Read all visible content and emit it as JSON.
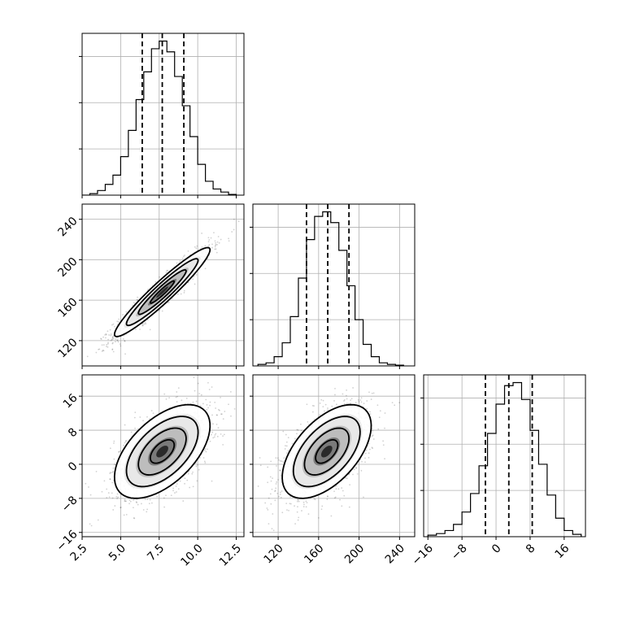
{
  "chart_data": [
    {
      "type": "histogram",
      "panel": "diag-1",
      "x_range": [
        2.5,
        13.0
      ],
      "y_range": [
        0,
        1.05
      ],
      "bin_edges": [
        2.5,
        3.0,
        3.5,
        4.0,
        4.5,
        5.0,
        5.5,
        6.0,
        6.5,
        7.0,
        7.5,
        8.0,
        8.5,
        9.0,
        9.5,
        10.0,
        10.5,
        11.0,
        11.5,
        12.0,
        12.5
      ],
      "densities": [
        0.0,
        0.01,
        0.03,
        0.07,
        0.13,
        0.25,
        0.42,
        0.62,
        0.8,
        0.95,
        1.0,
        0.93,
        0.77,
        0.58,
        0.38,
        0.2,
        0.09,
        0.04,
        0.02,
        0.005
      ],
      "quantiles": [
        6.4,
        7.7,
        9.1
      ],
      "x_ticks": [
        2.5,
        5.0,
        7.5,
        10.0,
        12.5
      ],
      "x_tick_labels": [],
      "grid": true
    },
    {
      "type": "scatter",
      "panel": "pair-1-2",
      "x_range": [
        2.5,
        13.0
      ],
      "y_range": [
        95,
        255
      ],
      "x_ticks": [
        2.5,
        5.0,
        7.5,
        10.0,
        12.5
      ],
      "y_ticks": [
        120,
        160,
        200,
        240
      ],
      "y_tick_labels": [
        "120",
        "160",
        "200",
        "240"
      ],
      "center": [
        7.7,
        168
      ],
      "std": [
        1.55,
        22
      ],
      "correlation": 0.95,
      "grid": true
    },
    {
      "type": "histogram",
      "panel": "diag-2",
      "x_range": [
        95,
        255
      ],
      "y_range": [
        0,
        1.05
      ],
      "bin_edges": [
        100,
        108,
        116,
        124,
        132,
        140,
        148,
        156,
        164,
        172,
        180,
        188,
        196,
        204,
        212,
        220,
        228,
        236,
        244
      ],
      "densities": [
        0.01,
        0.02,
        0.06,
        0.15,
        0.32,
        0.57,
        0.82,
        0.97,
        1.0,
        0.93,
        0.75,
        0.52,
        0.3,
        0.14,
        0.06,
        0.02,
        0.01,
        0.005
      ],
      "quantiles": [
        148,
        169,
        190
      ],
      "x_ticks": [
        120,
        160,
        200,
        240
      ],
      "x_tick_labels": [],
      "grid": true
    },
    {
      "type": "scatter",
      "panel": "pair-1-3",
      "x_range": [
        2.5,
        13.0
      ],
      "y_range": [
        -17,
        21
      ],
      "x_ticks": [
        2.5,
        5.0,
        7.5,
        10.0,
        12.5
      ],
      "x_tick_labels": [
        "2.5",
        "5.0",
        "7.5",
        "10.0",
        "12.5"
      ],
      "y_ticks": [
        -16,
        -8,
        0,
        8,
        16
      ],
      "y_tick_labels": [
        "−16",
        "−8",
        "0",
        "8",
        "16"
      ],
      "center": [
        7.7,
        3
      ],
      "std": [
        1.55,
        5.5
      ],
      "correlation": 0.55,
      "grid": true
    },
    {
      "type": "scatter",
      "panel": "pair-2-3",
      "x_range": [
        95,
        255
      ],
      "y_range": [
        -17,
        21
      ],
      "x_ticks": [
        120,
        160,
        200,
        240
      ],
      "x_tick_labels": [
        "120",
        "160",
        "200",
        "240"
      ],
      "y_ticks": [
        -16,
        -8,
        0,
        8,
        16
      ],
      "center": [
        168,
        3
      ],
      "std": [
        22,
        5.5
      ],
      "correlation": 0.55,
      "grid": true
    },
    {
      "type": "histogram",
      "panel": "diag-3",
      "x_range": [
        -17,
        21
      ],
      "y_range": [
        0,
        1.05
      ],
      "bin_edges": [
        -16,
        -14,
        -12,
        -10,
        -8,
        -6,
        -4,
        -2,
        0,
        2,
        4,
        6,
        8,
        10,
        12,
        14,
        16,
        18,
        20
      ],
      "densities": [
        0.01,
        0.02,
        0.04,
        0.08,
        0.16,
        0.28,
        0.46,
        0.67,
        0.86,
        0.98,
        1.0,
        0.89,
        0.69,
        0.47,
        0.27,
        0.12,
        0.04,
        0.015
      ],
      "quantiles": [
        -2.5,
        3,
        8.5
      ],
      "x_ticks": [
        -16,
        -8,
        0,
        8,
        16
      ],
      "x_tick_labels": [
        "−16",
        "−8",
        "0",
        "8",
        "16"
      ],
      "grid": true
    }
  ]
}
